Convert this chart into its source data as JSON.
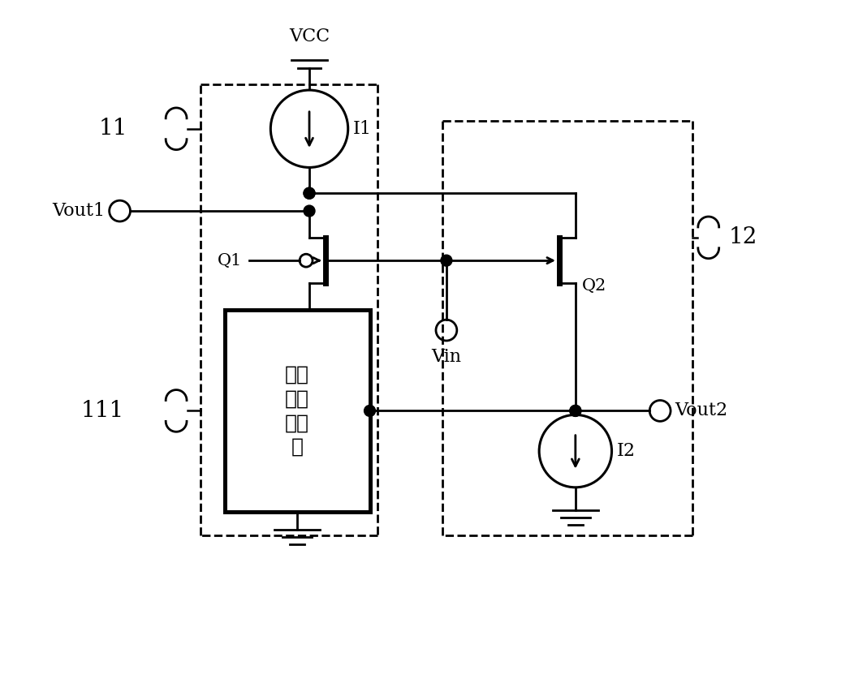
{
  "bg_color": "#ffffff",
  "line_color": "#000000",
  "lw": 2.0,
  "dlw": 2.0,
  "figsize": [
    10.68,
    8.42
  ],
  "dpi": 100,
  "vcc_label": "VCC",
  "i1_label": "I1",
  "i2_label": "I2",
  "q1_label": "Q1",
  "q2_label": "Q2",
  "vout1_label": "Vout1",
  "vout2_label": "Vout2",
  "vin_label": "Vin",
  "l11_label": "11",
  "l12_label": "12",
  "l111_label": "111",
  "font_size": 16,
  "chinese_font_size": 18,
  "note_font_size": 20
}
